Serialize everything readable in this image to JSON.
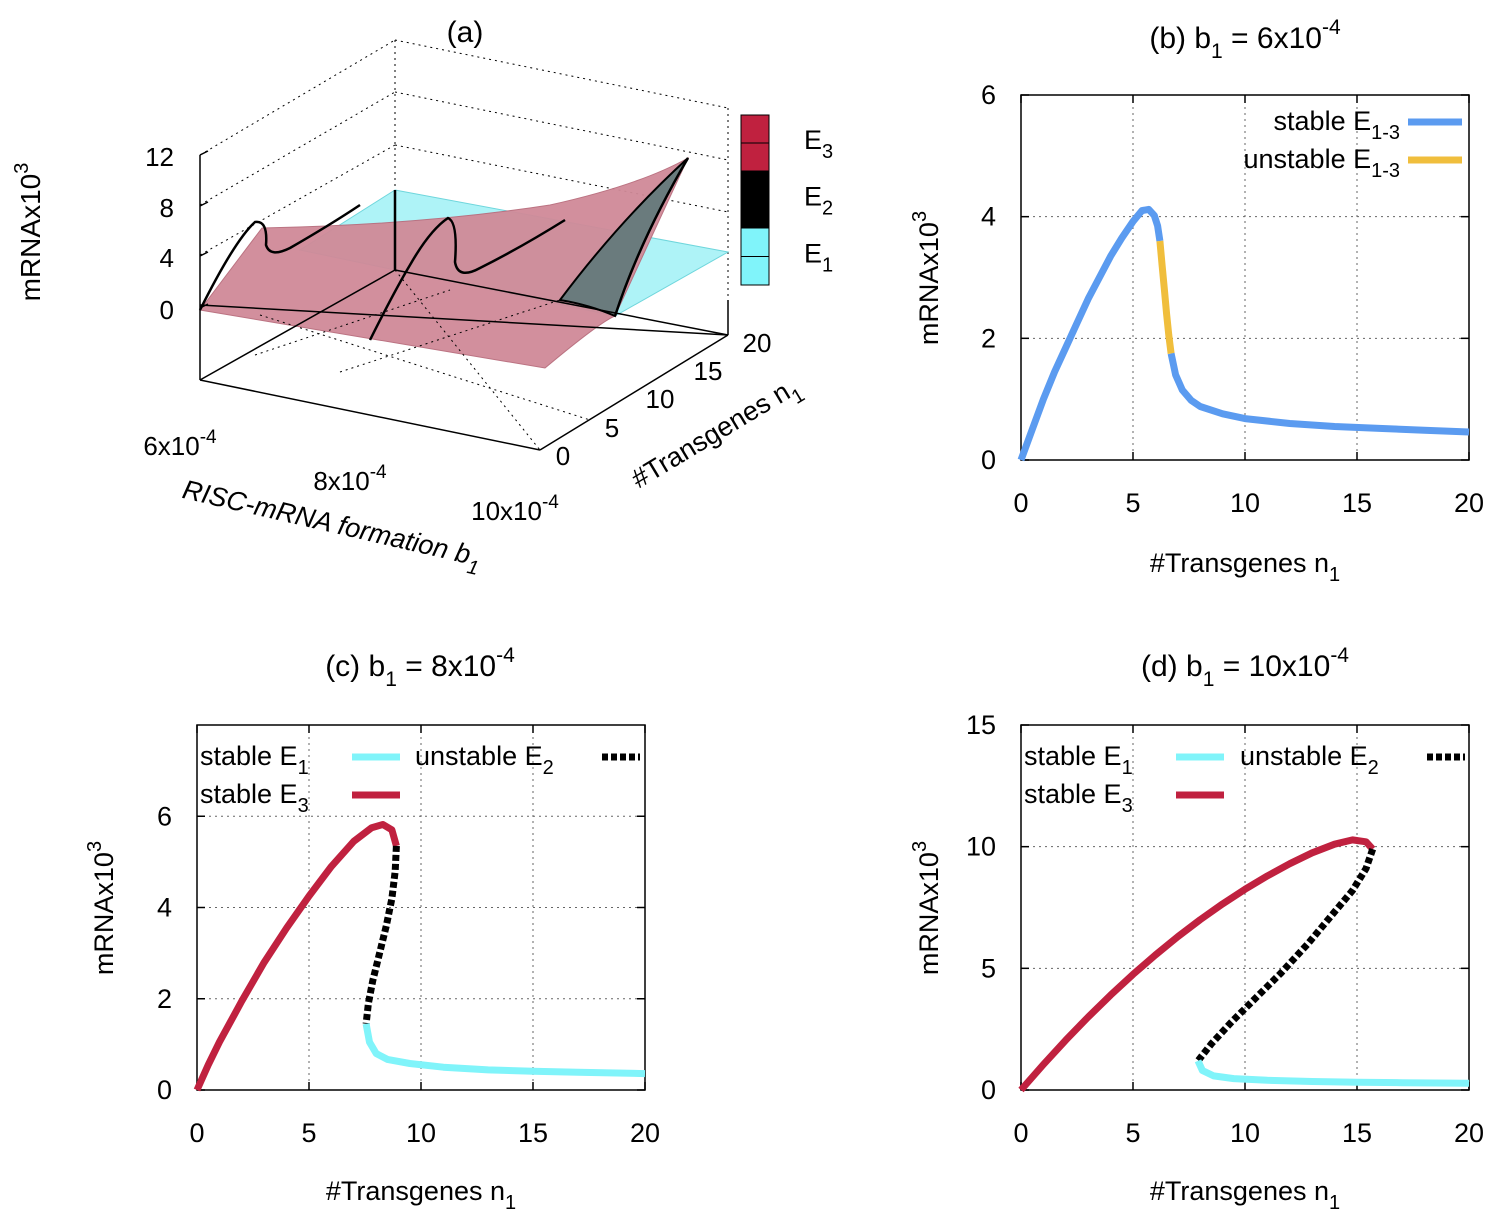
{
  "colors": {
    "stable_blue": "#5b9bf0",
    "unstable_orange": "#f0be3c",
    "cyan": "#80f4fa",
    "crimson": "#c0213f",
    "black": "#000000",
    "surface_pink": "#d08a98",
    "surface_cyan": "#aef3f7"
  },
  "chart_data": [
    {
      "id": "a",
      "type": "surface3d",
      "title": "(a)",
      "zlabel": "mRNAx10",
      "zlabel_sup": "3",
      "z_ticks": [
        "0",
        "4",
        "8",
        "12"
      ],
      "xlabel": "RISC-mRNA formation b",
      "xlabel_sub": "1",
      "x_ticks": [
        {
          "base": "6x10",
          "exp": "-4"
        },
        {
          "base": "8x10",
          "exp": "-4"
        },
        {
          "base": "10x10",
          "exp": "-4"
        }
      ],
      "ylabel": "#Transgenes n",
      "ylabel_sub": "1",
      "y_ticks": [
        "0",
        "5",
        "10",
        "15",
        "20"
      ],
      "colorbar": [
        {
          "label": "E",
          "sub": "3",
          "color": "#c0213f"
        },
        {
          "label": "E",
          "sub": "2",
          "color": "#000000"
        },
        {
          "label": "E",
          "sub": "1",
          "color": "#80f4fa"
        }
      ]
    },
    {
      "id": "b",
      "type": "line",
      "title": "(b) b",
      "title_sub": "1",
      "title_rest": " = 6x10",
      "title_sup": "-4",
      "xlabel": "#Transgenes n",
      "xlabel_sub": "1",
      "ylabel": "mRNAx10",
      "ylabel_sup": "3",
      "xlim": [
        0,
        20
      ],
      "ylim": [
        0,
        6
      ],
      "x_ticks": [
        0,
        5,
        10,
        15,
        20
      ],
      "y_ticks": [
        0,
        2,
        4,
        6
      ],
      "grid": true,
      "legend": [
        {
          "label": "stable E",
          "sub": "1-3",
          "color": "#5b9bf0",
          "dashed": false
        },
        {
          "label": "unstable E",
          "sub": "1-3",
          "color": "#f0be3c",
          "dashed": false
        }
      ],
      "series": [
        {
          "name": "stable E1-3",
          "color": "#5b9bf0",
          "dashed": false,
          "points": [
            [
              0,
              0
            ],
            [
              0.5,
              0.5
            ],
            [
              1,
              1.0
            ],
            [
              1.5,
              1.45
            ],
            [
              2,
              1.85
            ],
            [
              2.5,
              2.25
            ],
            [
              3,
              2.65
            ],
            [
              3.5,
              3.0
            ],
            [
              4,
              3.35
            ],
            [
              4.5,
              3.65
            ],
            [
              5,
              3.92
            ],
            [
              5.4,
              4.1
            ],
            [
              5.7,
              4.12
            ],
            [
              5.95,
              4.02
            ],
            [
              6.1,
              3.85
            ],
            [
              6.2,
              3.6
            ]
          ]
        },
        {
          "name": "unstable E1-3",
          "color": "#f0be3c",
          "dashed": false,
          "points": [
            [
              6.2,
              3.6
            ],
            [
              6.3,
              3.2
            ],
            [
              6.4,
              2.8
            ],
            [
              6.5,
              2.4
            ],
            [
              6.6,
              2.05
            ],
            [
              6.7,
              1.75
            ]
          ]
        },
        {
          "name": "stable E1-3",
          "color": "#5b9bf0",
          "dashed": false,
          "points": [
            [
              6.7,
              1.75
            ],
            [
              6.9,
              1.4
            ],
            [
              7.2,
              1.15
            ],
            [
              7.6,
              0.98
            ],
            [
              8,
              0.88
            ],
            [
              9,
              0.76
            ],
            [
              10,
              0.68
            ],
            [
              12,
              0.6
            ],
            [
              14,
              0.55
            ],
            [
              16,
              0.52
            ],
            [
              18,
              0.49
            ],
            [
              20,
              0.46
            ]
          ]
        }
      ]
    },
    {
      "id": "c",
      "type": "line",
      "title": "(c) b",
      "title_sub": "1",
      "title_rest": " = 8x10",
      "title_sup": "-4",
      "xlabel": "#Transgenes n",
      "xlabel_sub": "1",
      "ylabel": "mRNAx10",
      "ylabel_sup": "3",
      "xlim": [
        0,
        20
      ],
      "ylim": [
        0,
        8
      ],
      "x_ticks": [
        0,
        5,
        10,
        15,
        20
      ],
      "y_ticks": [
        0,
        2,
        4,
        6
      ],
      "grid": true,
      "legend": [
        {
          "label": "stable E",
          "sub": "1",
          "color": "#80f4fa",
          "dashed": false
        },
        {
          "label": "stable E",
          "sub": "3",
          "color": "#c0213f",
          "dashed": false
        },
        {
          "label": "unstable E",
          "sub": "2",
          "color": "#000000",
          "dashed": true
        }
      ],
      "series": [
        {
          "name": "stable E3",
          "color": "#c0213f",
          "dashed": false,
          "points": [
            [
              0,
              0
            ],
            [
              0.5,
              0.55
            ],
            [
              1,
              1.05
            ],
            [
              1.5,
              1.5
            ],
            [
              2,
              1.95
            ],
            [
              3,
              2.8
            ],
            [
              4,
              3.55
            ],
            [
              5,
              4.25
            ],
            [
              6,
              4.9
            ],
            [
              7,
              5.45
            ],
            [
              7.8,
              5.75
            ],
            [
              8.3,
              5.82
            ],
            [
              8.7,
              5.7
            ],
            [
              8.9,
              5.35
            ]
          ]
        },
        {
          "name": "unstable E2",
          "color": "#000000",
          "dashed": true,
          "points": [
            [
              8.9,
              5.35
            ],
            [
              8.85,
              4.8
            ],
            [
              8.7,
              4.2
            ],
            [
              8.45,
              3.6
            ],
            [
              8.15,
              3.0
            ],
            [
              7.85,
              2.4
            ],
            [
              7.65,
              1.9
            ],
            [
              7.55,
              1.45
            ]
          ]
        },
        {
          "name": "stable E1",
          "color": "#80f4fa",
          "dashed": false,
          "points": [
            [
              7.55,
              1.45
            ],
            [
              7.7,
              1.05
            ],
            [
              8,
              0.8
            ],
            [
              8.5,
              0.67
            ],
            [
              9.5,
              0.58
            ],
            [
              11,
              0.5
            ],
            [
              13,
              0.44
            ],
            [
              15,
              0.41
            ],
            [
              17,
              0.39
            ],
            [
              20,
              0.36
            ]
          ]
        }
      ]
    },
    {
      "id": "d",
      "type": "line",
      "title": "(d) b",
      "title_sub": "1",
      "title_rest": " = 10x10",
      "title_sup": "-4",
      "xlabel": "#Transgenes n",
      "xlabel_sub": "1",
      "ylabel": "mRNAx10",
      "ylabel_sup": "3",
      "xlim": [
        0,
        20
      ],
      "ylim": [
        0,
        15
      ],
      "x_ticks": [
        0,
        5,
        10,
        15,
        20
      ],
      "y_ticks": [
        0,
        5,
        10,
        15
      ],
      "grid": true,
      "legend": [
        {
          "label": "stable E",
          "sub": "1",
          "color": "#80f4fa",
          "dashed": false
        },
        {
          "label": "stable E",
          "sub": "3",
          "color": "#c0213f",
          "dashed": false
        },
        {
          "label": "unstable E",
          "sub": "2",
          "color": "#000000",
          "dashed": true
        }
      ],
      "series": [
        {
          "name": "stable E3",
          "color": "#c0213f",
          "dashed": false,
          "points": [
            [
              0,
              0
            ],
            [
              1,
              1.05
            ],
            [
              2,
              2.05
            ],
            [
              3,
              3.0
            ],
            [
              4,
              3.9
            ],
            [
              5,
              4.75
            ],
            [
              6,
              5.55
            ],
            [
              7,
              6.3
            ],
            [
              8,
              7.0
            ],
            [
              9,
              7.65
            ],
            [
              10,
              8.25
            ],
            [
              11,
              8.8
            ],
            [
              12,
              9.3
            ],
            [
              13,
              9.75
            ],
            [
              14,
              10.1
            ],
            [
              14.8,
              10.28
            ],
            [
              15.4,
              10.2
            ],
            [
              15.7,
              9.9
            ]
          ]
        },
        {
          "name": "unstable E2",
          "color": "#000000",
          "dashed": true,
          "points": [
            [
              15.7,
              9.9
            ],
            [
              15.4,
              9.1
            ],
            [
              14.8,
              8.2
            ],
            [
              13.8,
              7.1
            ],
            [
              12.8,
              6.0
            ],
            [
              11.6,
              4.8
            ],
            [
              10.5,
              3.8
            ],
            [
              9.4,
              2.8
            ],
            [
              8.5,
              1.9
            ],
            [
              7.9,
              1.2
            ]
          ]
        },
        {
          "name": "stable E1",
          "color": "#80f4fa",
          "dashed": false,
          "points": [
            [
              7.9,
              1.2
            ],
            [
              8.1,
              0.8
            ],
            [
              8.6,
              0.58
            ],
            [
              9.5,
              0.47
            ],
            [
              11,
              0.4
            ],
            [
              13,
              0.35
            ],
            [
              15,
              0.32
            ],
            [
              17,
              0.3
            ],
            [
              20,
              0.28
            ]
          ]
        }
      ]
    }
  ]
}
